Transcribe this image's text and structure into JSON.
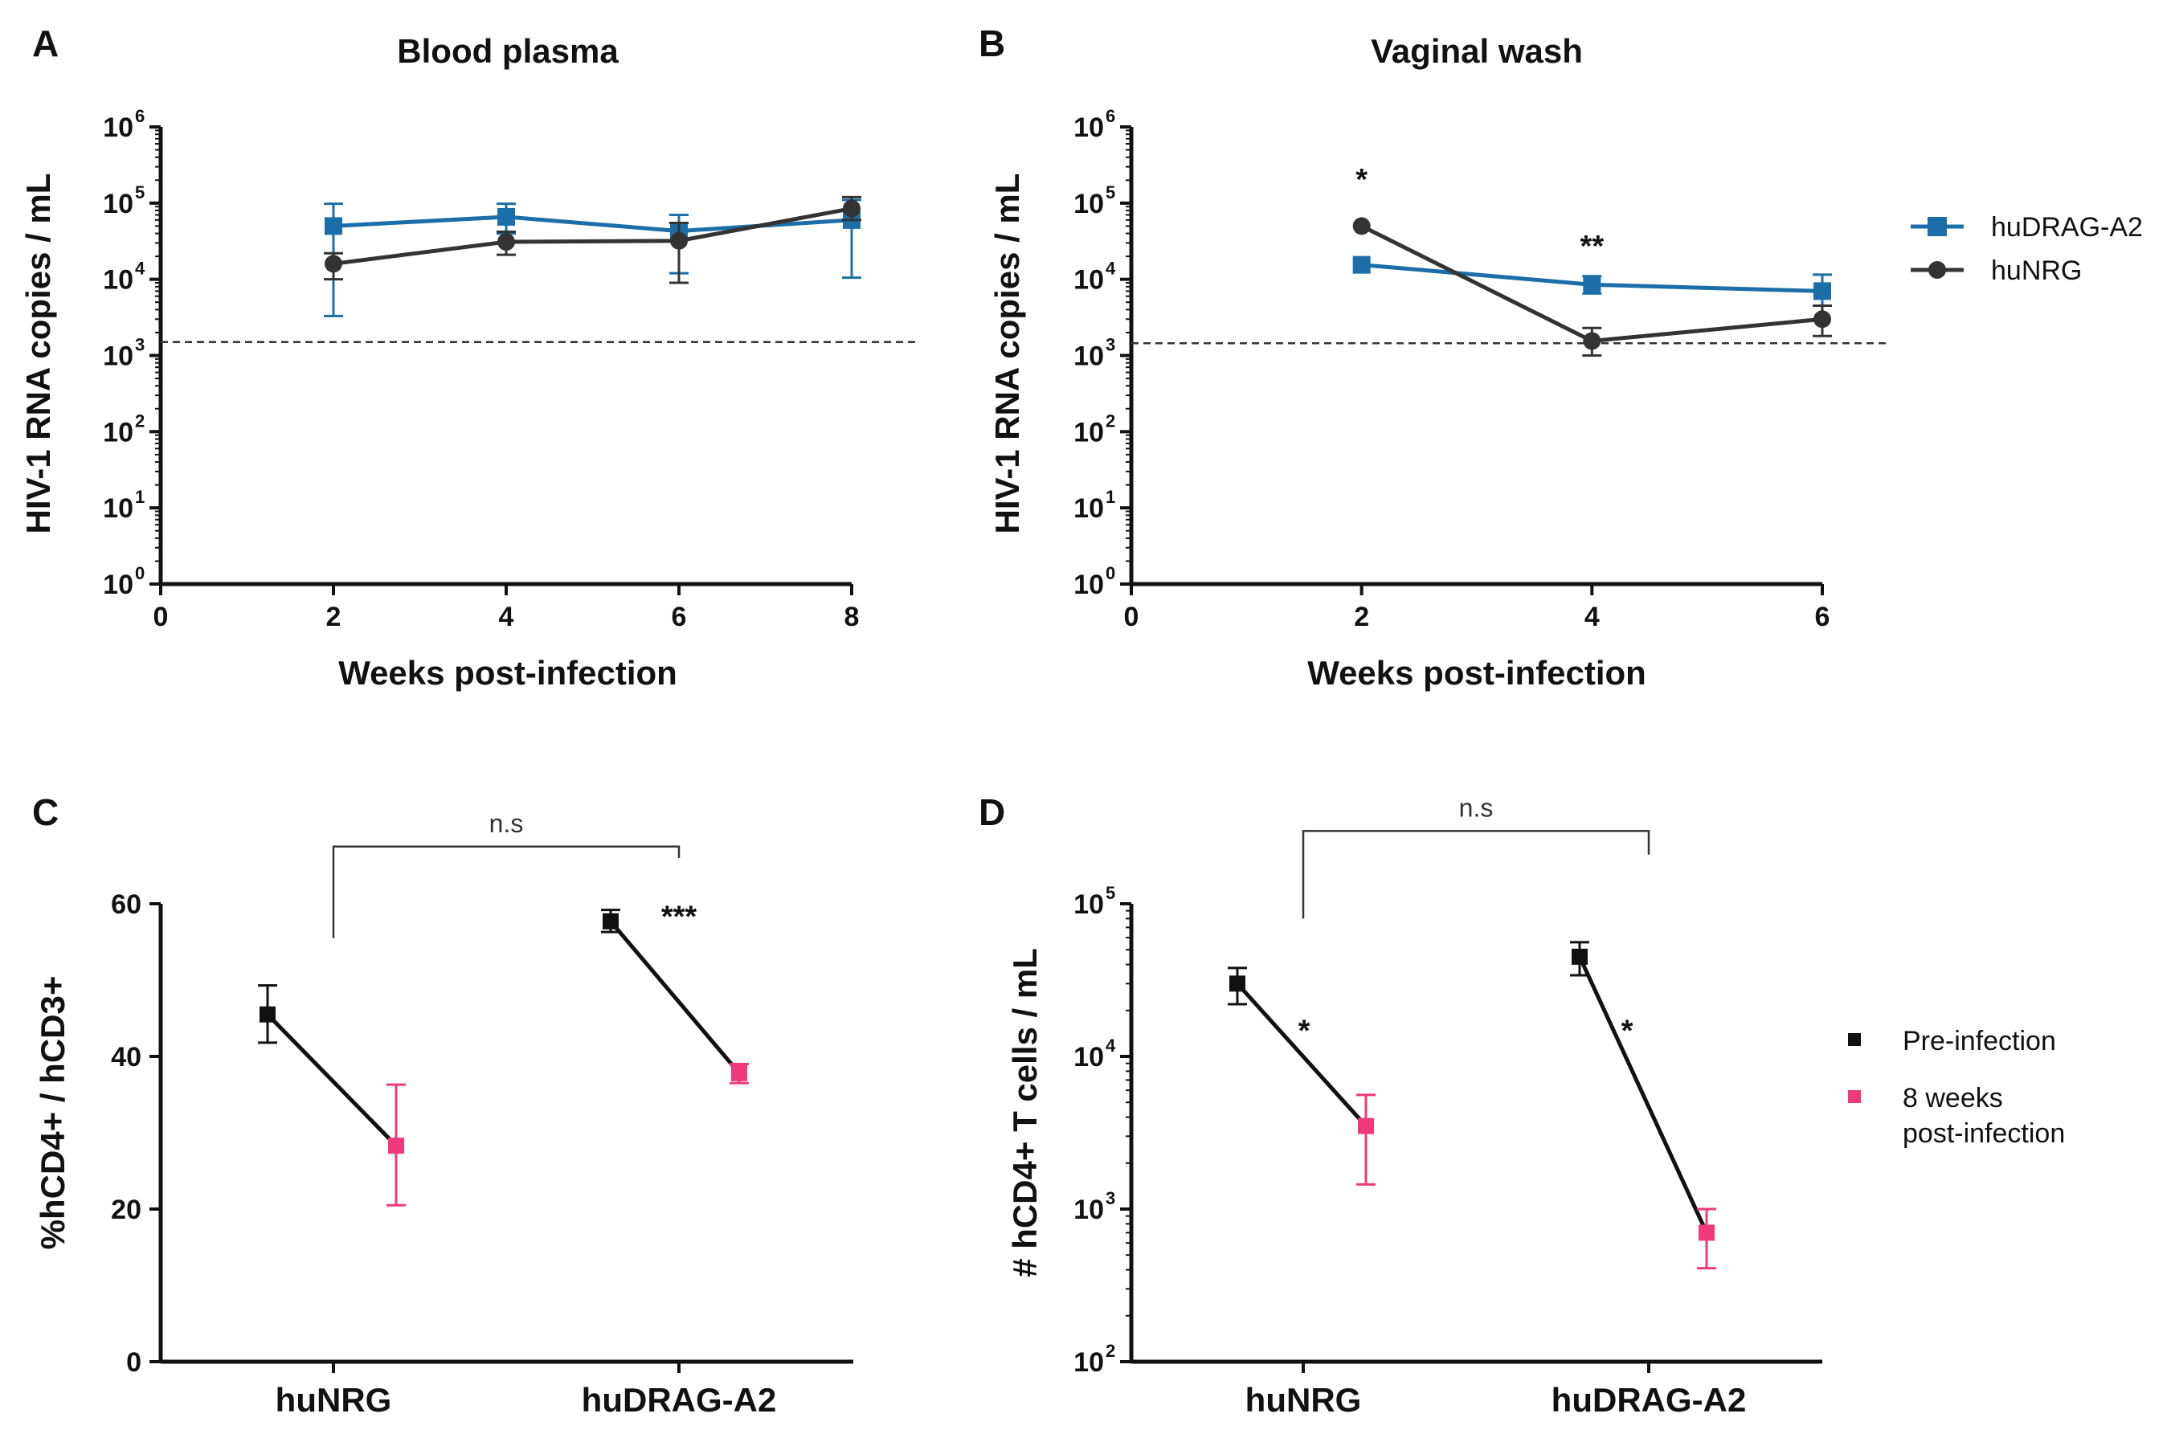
{
  "chart_data": [
    {
      "panel": "A",
      "type": "line",
      "title": "Blood plasma",
      "xlabel": "Weeks post-infection",
      "ylabel": "HIV-1 RNA copies / mL",
      "yscale": "log",
      "ylim": [
        1,
        1000000
      ],
      "xlim": [
        0,
        8
      ],
      "xticks": [
        0,
        2,
        4,
        6,
        8
      ],
      "yticks": [
        1,
        10,
        100,
        1000,
        10000,
        100000,
        1000000
      ],
      "ytick_base": "10",
      "ytick_exponents": [
        "0",
        "1",
        "2",
        "3",
        "4",
        "5",
        "6"
      ],
      "detection_limit": 1500,
      "series": [
        {
          "name": "huDRAG-A2",
          "color": "#1b6ea8",
          "marker": "square",
          "x": [
            2,
            4,
            6,
            8
          ],
          "values": [
            50000,
            66000,
            43000,
            60000
          ],
          "err_low": [
            3300,
            40000,
            12000,
            10500
          ],
          "err_high": [
            98000,
            98000,
            70000,
            110000
          ]
        },
        {
          "name": "huNRG",
          "color": "#333333",
          "marker": "circle",
          "x": [
            2,
            4,
            6,
            8
          ],
          "values": [
            16000,
            31000,
            32000,
            85000
          ],
          "err_low": [
            10000,
            21000,
            9000,
            60000
          ],
          "err_high": [
            22000,
            42000,
            55000,
            120000
          ]
        }
      ],
      "annotations": []
    },
    {
      "panel": "B",
      "type": "line",
      "title": "Vaginal wash",
      "xlabel": "Weeks post-infection",
      "ylabel": "HIV-1 RNA copies / mL",
      "yscale": "log",
      "ylim": [
        1,
        1000000
      ],
      "xlim": [
        0,
        6
      ],
      "xticks": [
        0,
        2,
        4,
        6
      ],
      "yticks": [
        1,
        10,
        100,
        1000,
        10000,
        100000,
        1000000
      ],
      "ytick_base": "10",
      "ytick_exponents": [
        "0",
        "1",
        "2",
        "3",
        "4",
        "5",
        "6"
      ],
      "detection_limit": 1450,
      "series": [
        {
          "name": "huDRAG-A2",
          "color": "#1b6ea8",
          "marker": "square",
          "x": [
            2,
            4,
            6
          ],
          "values": [
            15500,
            8500,
            7000
          ],
          "err_low": [
            15500,
            6500,
            4500
          ],
          "err_high": [
            15500,
            11000,
            11500
          ]
        },
        {
          "name": "huNRG",
          "color": "#333333",
          "marker": "circle",
          "x": [
            2,
            4,
            6
          ],
          "values": [
            50000,
            1550,
            3000
          ],
          "err_low": [
            50000,
            1000,
            1800
          ],
          "err_high": [
            50000,
            2300,
            4500
          ]
        }
      ],
      "annotations": [
        {
          "text": "*",
          "x": 2,
          "y": 150000
        },
        {
          "text": "**",
          "x": 4,
          "y": 20000
        }
      ],
      "legend": [
        {
          "name": "huDRAG-A2",
          "color": "#1b6ea8",
          "marker": "square"
        },
        {
          "name": "huNRG",
          "color": "#333333",
          "marker": "circle"
        }
      ]
    },
    {
      "panel": "C",
      "type": "scatter",
      "xlabel": "",
      "ylabel": "%hCD4+ / hCD3+",
      "yscale": "linear",
      "ylim": [
        0,
        60
      ],
      "yticks": [
        0,
        20,
        40,
        60
      ],
      "categories": [
        "huNRG",
        "huDRAG-A2"
      ],
      "groups": [
        {
          "category": "huNRG",
          "pre": {
            "value": 45.5,
            "low": 41.8,
            "high": 49.3
          },
          "post": {
            "value": 28.3,
            "low": 20.5,
            "high": 36.3
          }
        },
        {
          "category": "huDRAG-A2",
          "pre": {
            "value": 57.7,
            "low": 56.3,
            "high": 59.2
          },
          "post": {
            "value": 37.8,
            "low": 36.5,
            "high": 39.0
          }
        }
      ],
      "pre_color": "#111111",
      "post_color": "#f0397a",
      "significance": [
        {
          "text": "***",
          "category": "huDRAG-A2",
          "y": 58.5
        }
      ],
      "bracket": {
        "text": "n.s",
        "y": 67.5,
        "left_bottom": 55.5,
        "right_bottom": 66
      }
    },
    {
      "panel": "D",
      "type": "scatter",
      "xlabel": "",
      "ylabel": "# hCD4+ T cells / mL",
      "yscale": "log",
      "ylim": [
        100,
        100000
      ],
      "yticks": [
        100,
        1000,
        10000,
        100000
      ],
      "ytick_base": "10",
      "ytick_exponents": [
        "2",
        "3",
        "4",
        "5"
      ],
      "categories": [
        "huNRG",
        "huDRAG-A2"
      ],
      "groups": [
        {
          "category": "huNRG",
          "pre": {
            "value": 30000,
            "low": 22000,
            "high": 38000
          },
          "post": {
            "value": 3500,
            "low": 1450,
            "high": 5600
          }
        },
        {
          "category": "huDRAG-A2",
          "pre": {
            "value": 45000,
            "low": 34000,
            "high": 56000
          },
          "post": {
            "value": 700,
            "low": 410,
            "high": 1000
          }
        }
      ],
      "pre_color": "#111111",
      "post_color": "#f0397a",
      "significance": [
        {
          "text": "*",
          "category": "huNRG",
          "y": 15000
        },
        {
          "text": "*",
          "category": "huDRAG-A2",
          "y": 15000
        }
      ],
      "bracket": {
        "text": "n.s",
        "y": 300000,
        "left_bottom": 80000,
        "right_bottom": 210000
      },
      "legend": [
        {
          "name": "Pre-infection",
          "color": "#111111"
        },
        {
          "name": "8 weeks",
          "name2": "post-infection",
          "color": "#f0397a"
        }
      ]
    }
  ]
}
